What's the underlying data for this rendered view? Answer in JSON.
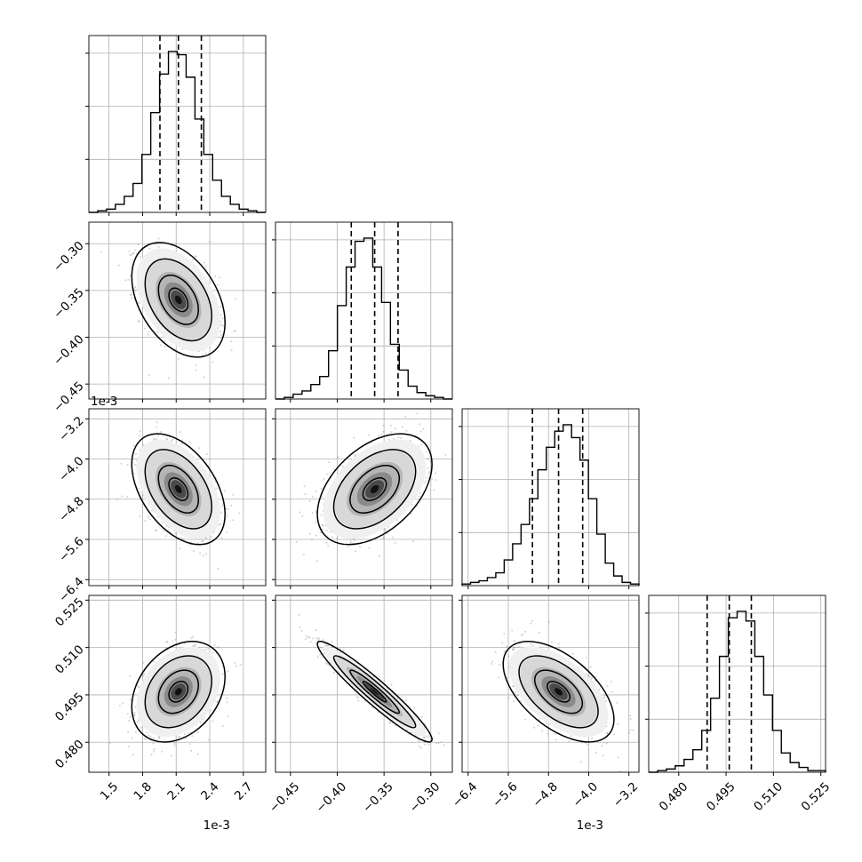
{
  "chart_data": {
    "type": "corner",
    "title": "",
    "parameters": [
      {
        "ticks": [
          1.5,
          1.8,
          2.1,
          2.4,
          2.7
        ],
        "tick_labels": [
          "1.5",
          "1.8",
          "2.1",
          "2.4",
          "2.7"
        ],
        "range": [
          1.32,
          2.9
        ],
        "offset": "1e-3",
        "mean": 2.12,
        "std": 0.17
      },
      {
        "ticks": [
          -0.45,
          -0.4,
          -0.35,
          -0.3
        ],
        "tick_labels": [
          "−0.45",
          "−0.40",
          "−0.35",
          "−0.30"
        ],
        "range": [
          -0.466,
          -0.277
        ],
        "offset": "",
        "mean": -0.36,
        "std": 0.025
      },
      {
        "ticks": [
          -6.4,
          -5.6,
          -4.8,
          -4.0,
          -3.2
        ],
        "tick_labels": [
          "−6.4",
          "−5.6",
          "−4.8",
          "−4.0",
          "−3.2"
        ],
        "range": [
          -6.52,
          -3.0
        ],
        "offset": "1e-3",
        "mean": -4.6,
        "std": 0.45
      },
      {
        "ticks": [
          0.48,
          0.495,
          0.51,
          0.525
        ],
        "tick_labels": [
          "0.480",
          "0.495",
          "0.510",
          "0.525"
        ],
        "range": [
          0.4705,
          0.5265
        ],
        "offset": "",
        "mean": 0.496,
        "std": 0.0065
      }
    ],
    "quantiles": [
      [
        1.955,
        2.12,
        2.325
      ],
      [
        -0.385,
        -0.36,
        -0.335
      ],
      [
        -5.12,
        -4.6,
        -4.12
      ],
      [
        0.489,
        0.496,
        0.503
      ]
    ],
    "correlations": [
      [
        0,
        1,
        -0.4
      ],
      [
        0,
        2,
        -0.45
      ],
      [
        0,
        3,
        0.3
      ],
      [
        1,
        2,
        0.45
      ],
      [
        1,
        3,
        -0.95
      ],
      [
        2,
        3,
        -0.55
      ]
    ],
    "histograms": [
      [
        0,
        1,
        2,
        5,
        10,
        18,
        36,
        62,
        86,
        100,
        98,
        84,
        58,
        36,
        20,
        10,
        5,
        2,
        1,
        0
      ],
      [
        0,
        1,
        3,
        5,
        9,
        14,
        30,
        58,
        82,
        98,
        100,
        82,
        60,
        34,
        18,
        8,
        4,
        2,
        1,
        0
      ],
      [
        1,
        2,
        3,
        5,
        8,
        16,
        26,
        38,
        54,
        72,
        86,
        96,
        100,
        92,
        78,
        54,
        32,
        14,
        6,
        2,
        1
      ],
      [
        0,
        1,
        2,
        4,
        8,
        14,
        26,
        46,
        72,
        96,
        100,
        94,
        72,
        48,
        26,
        12,
        6,
        3,
        1,
        1
      ]
    ],
    "grid": true,
    "legend": "none"
  }
}
